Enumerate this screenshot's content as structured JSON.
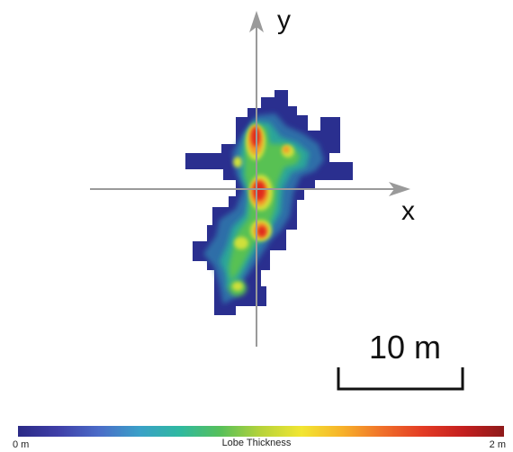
{
  "axes": {
    "x_label": "x",
    "y_label": "y"
  },
  "scale_bar": {
    "label": "10 m"
  },
  "colorbar": {
    "min_label": "0 m",
    "title": "Lobe Thickness",
    "max_label": "2 m",
    "colors": [
      "#2b2a86",
      "#3f3fa8",
      "#4b6cc8",
      "#3aa0c8",
      "#2fb9a0",
      "#57c05a",
      "#b7d33a",
      "#f2e632",
      "#f7b22a",
      "#f0702a",
      "#e33b24",
      "#c41f1f",
      "#8e1a1a"
    ]
  },
  "heat_palette": {
    "outline": "#2a2f8f",
    "low": "#2f6ea8",
    "mid_low": "#2ba59a",
    "mid": "#59c153",
    "mid_high": "#cfe03a",
    "high": "#f39c2c",
    "peak": "#e02a1f"
  }
}
